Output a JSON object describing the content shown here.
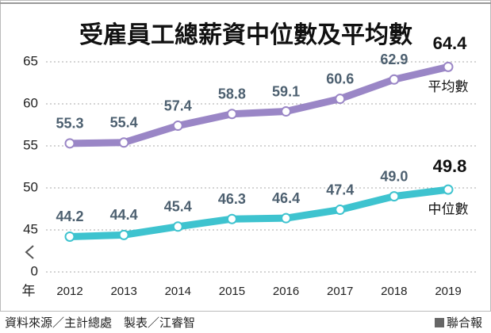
{
  "chart_data": {
    "type": "line",
    "title": "受雇員工總薪資中位數及平均數",
    "x_label": "年",
    "categories": [
      "2012",
      "2013",
      "2014",
      "2015",
      "2016",
      "2017",
      "2018",
      "2019"
    ],
    "series": [
      {
        "name": "平均數",
        "color": "#9a86c6",
        "values": [
          55.3,
          55.4,
          57.4,
          58.8,
          59.1,
          60.6,
          62.9,
          64.4
        ]
      },
      {
        "name": "中位數",
        "color": "#3ec3cf",
        "values": [
          44.2,
          44.4,
          45.4,
          46.3,
          46.4,
          47.4,
          49.0,
          49.8
        ],
        "value_labels": [
          "44.2",
          "44.4",
          "45.4",
          "46.3",
          "46.4",
          "47.4",
          "49.0",
          "49.8"
        ]
      }
    ],
    "ylim": [
      40,
      65
    ],
    "yticks": [
      0,
      45,
      50,
      55,
      60,
      65
    ],
    "y_break": true,
    "grid": true,
    "source": "資料來源／主計總處　製表／江睿智",
    "publisher": "聯合報"
  }
}
